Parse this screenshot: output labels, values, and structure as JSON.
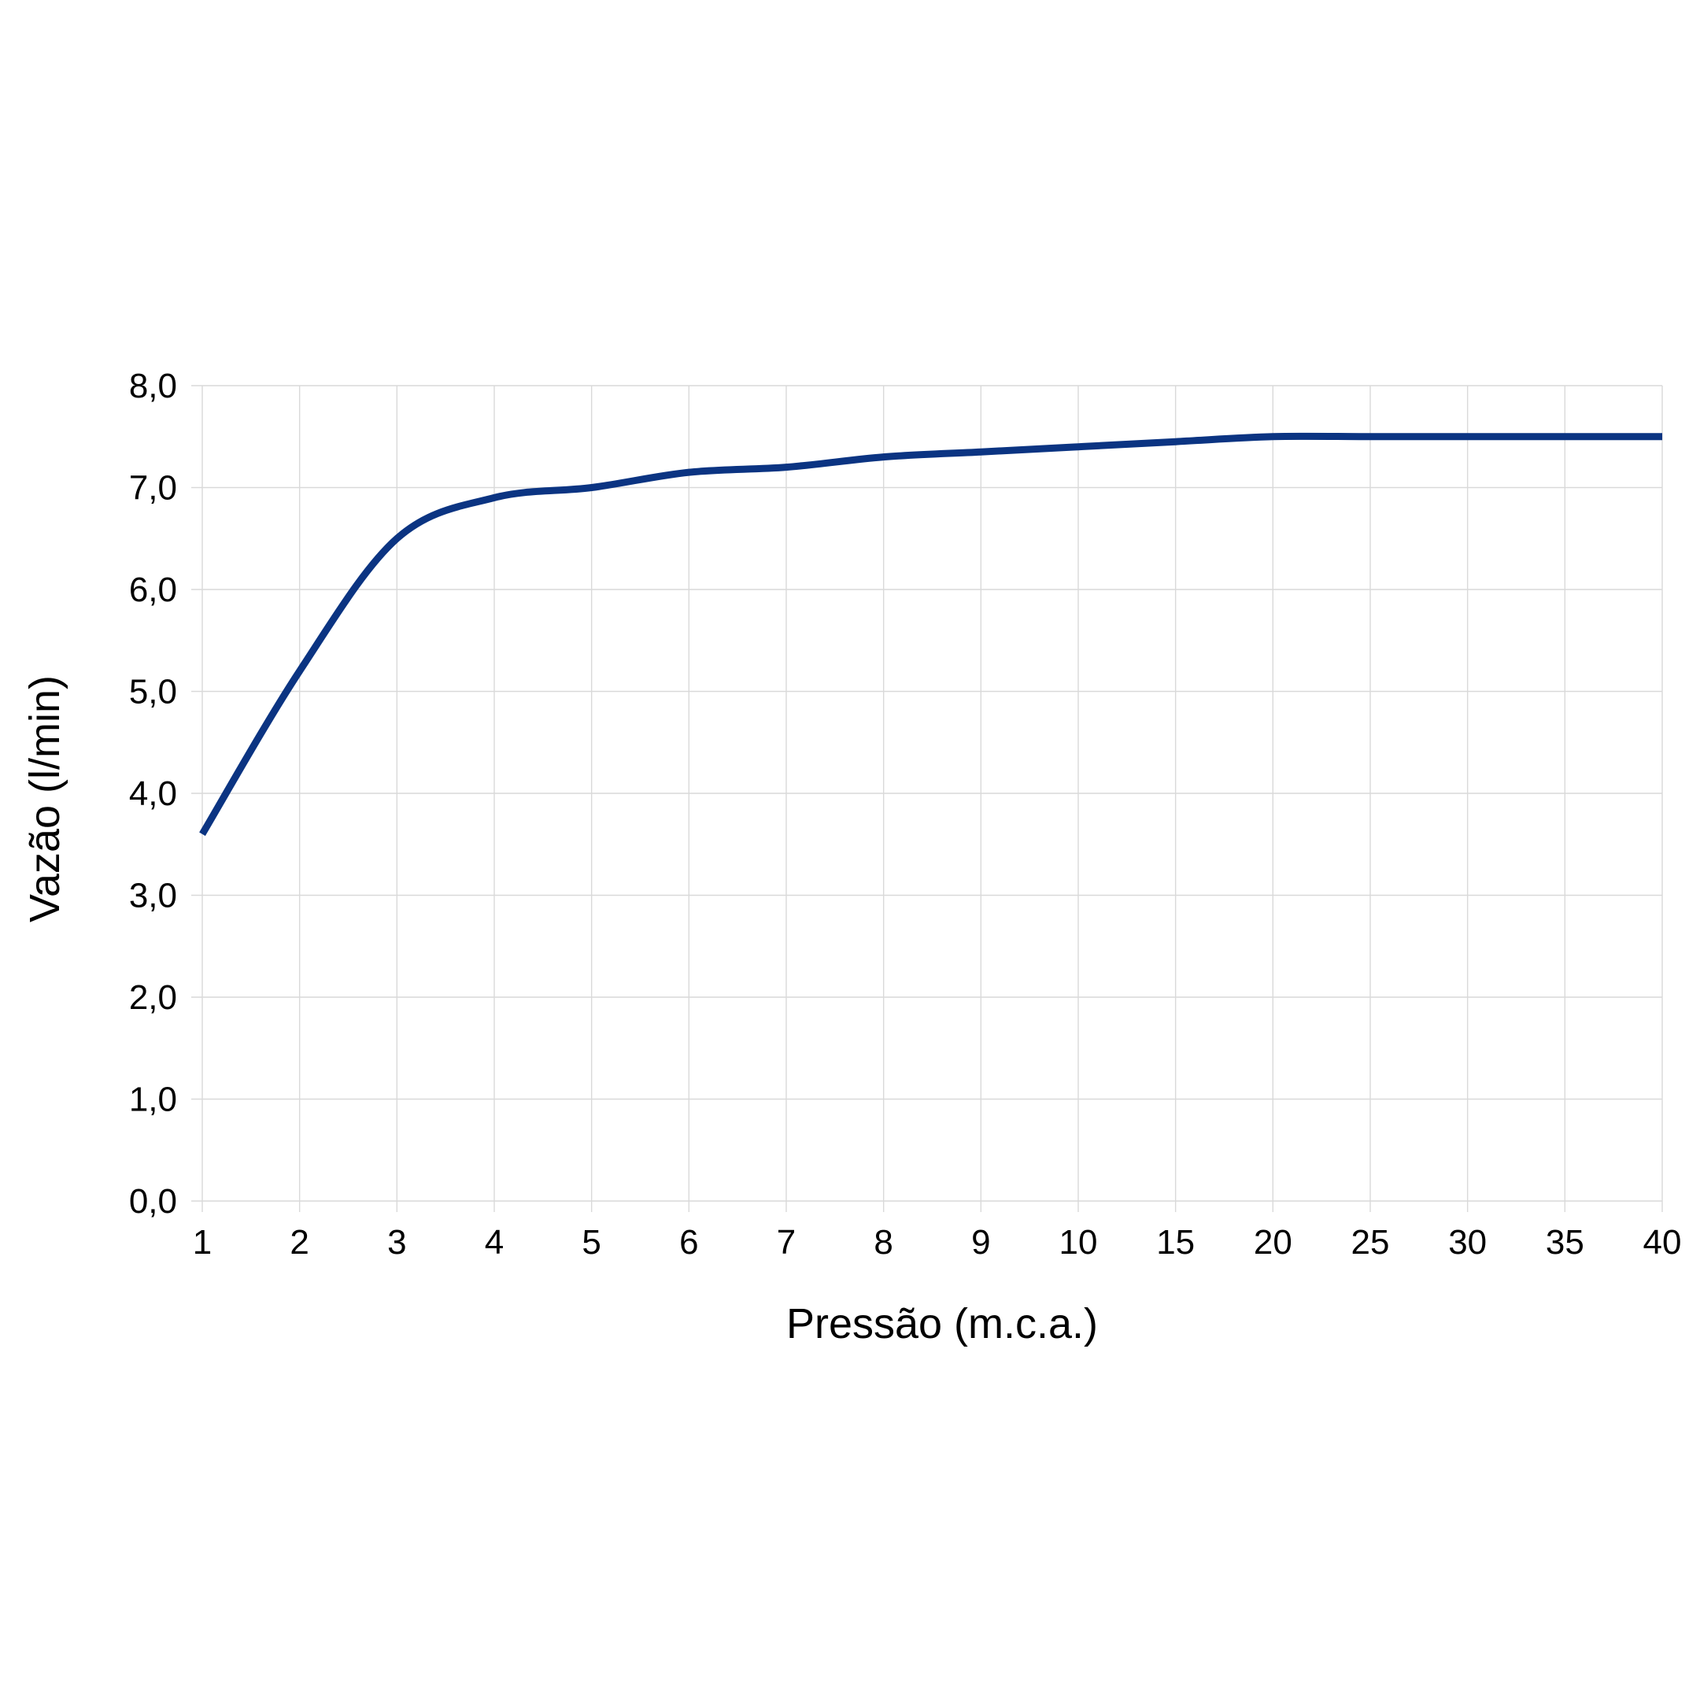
{
  "chart_data": {
    "type": "line",
    "title": "",
    "xlabel": "Pressão (m.c.a.)",
    "ylabel": "Vazão (l/min)",
    "categories": [
      "1",
      "2",
      "3",
      "4",
      "5",
      "6",
      "7",
      "8",
      "9",
      "10",
      "15",
      "20",
      "25",
      "30",
      "35",
      "40"
    ],
    "y_ticks": [
      "0,0",
      "1,0",
      "2,0",
      "3,0",
      "4,0",
      "5,0",
      "6,0",
      "7,0",
      "8,0"
    ],
    "ylim": [
      0,
      8
    ],
    "grid": true,
    "legend": "none",
    "series": [
      {
        "color": "#0b3482",
        "values": [
          3.6,
          5.2,
          6.5,
          6.9,
          7.0,
          7.15,
          7.2,
          7.3,
          7.35,
          7.4,
          7.45,
          7.5,
          7.5,
          7.5,
          7.5,
          7.5
        ]
      }
    ]
  }
}
